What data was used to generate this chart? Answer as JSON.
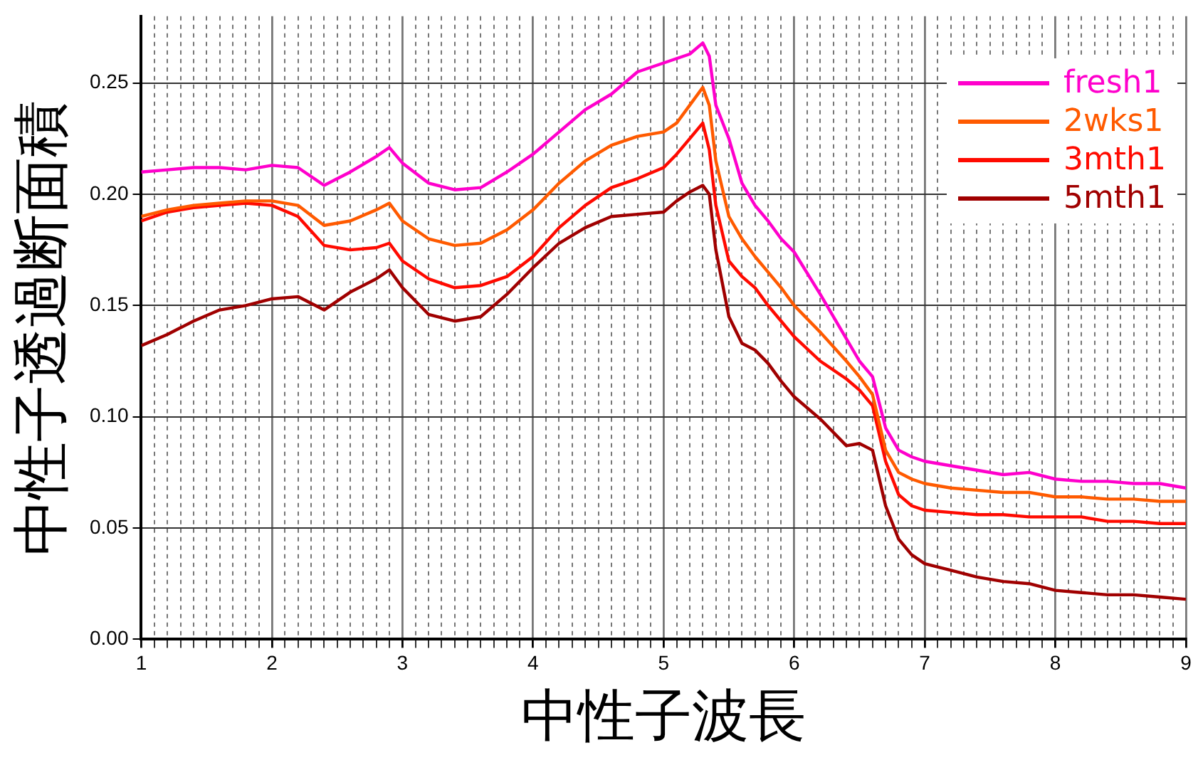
{
  "chart_data": {
    "type": "line",
    "xlabel": "中性子波長",
    "ylabel": "中性子透過断面積",
    "x": [
      1.0,
      1.2,
      1.4,
      1.6,
      1.8,
      2.0,
      2.2,
      2.4,
      2.6,
      2.8,
      2.9,
      3.0,
      3.2,
      3.4,
      3.6,
      3.8,
      4.0,
      4.2,
      4.4,
      4.6,
      4.8,
      5.0,
      5.1,
      5.2,
      5.3,
      5.35,
      5.4,
      5.5,
      5.6,
      5.7,
      5.8,
      5.9,
      6.0,
      6.2,
      6.4,
      6.5,
      6.6,
      6.7,
      6.8,
      6.9,
      7.0,
      7.2,
      7.4,
      7.6,
      7.8,
      8.0,
      8.2,
      8.4,
      8.6,
      8.8,
      9.0
    ],
    "series": [
      {
        "name": "fresh1",
        "color": "#ff00cc",
        "values": [
          0.21,
          0.211,
          0.212,
          0.212,
          0.211,
          0.213,
          0.212,
          0.204,
          0.21,
          0.217,
          0.221,
          0.214,
          0.205,
          0.202,
          0.203,
          0.21,
          0.218,
          0.228,
          0.238,
          0.245,
          0.255,
          0.259,
          0.261,
          0.263,
          0.268,
          0.262,
          0.24,
          0.225,
          0.205,
          0.195,
          0.188,
          0.18,
          0.174,
          0.155,
          0.135,
          0.125,
          0.118,
          0.095,
          0.085,
          0.082,
          0.08,
          0.078,
          0.076,
          0.074,
          0.075,
          0.072,
          0.071,
          0.071,
          0.07,
          0.07,
          0.068
        ]
      },
      {
        "name": "2wks1",
        "color": "#ff5a00",
        "values": [
          0.19,
          0.193,
          0.195,
          0.196,
          0.197,
          0.197,
          0.195,
          0.186,
          0.188,
          0.193,
          0.196,
          0.188,
          0.18,
          0.177,
          0.178,
          0.184,
          0.193,
          0.205,
          0.215,
          0.222,
          0.226,
          0.228,
          0.232,
          0.24,
          0.248,
          0.24,
          0.215,
          0.19,
          0.18,
          0.172,
          0.165,
          0.158,
          0.15,
          0.138,
          0.125,
          0.118,
          0.11,
          0.085,
          0.075,
          0.072,
          0.07,
          0.068,
          0.067,
          0.066,
          0.066,
          0.064,
          0.064,
          0.063,
          0.063,
          0.062,
          0.062
        ]
      },
      {
        "name": "3mth1",
        "color": "#ff0a00",
        "values": [
          0.188,
          0.192,
          0.194,
          0.195,
          0.196,
          0.195,
          0.19,
          0.177,
          0.175,
          0.176,
          0.178,
          0.17,
          0.162,
          0.158,
          0.159,
          0.163,
          0.172,
          0.185,
          0.195,
          0.203,
          0.207,
          0.212,
          0.218,
          0.225,
          0.232,
          0.22,
          0.195,
          0.17,
          0.163,
          0.158,
          0.15,
          0.143,
          0.136,
          0.125,
          0.117,
          0.112,
          0.105,
          0.08,
          0.065,
          0.06,
          0.058,
          0.057,
          0.056,
          0.056,
          0.055,
          0.055,
          0.055,
          0.053,
          0.053,
          0.052,
          0.052
        ]
      },
      {
        "name": "5mth1",
        "color": "#a00000",
        "values": [
          0.132,
          0.137,
          0.143,
          0.148,
          0.15,
          0.153,
          0.154,
          0.148,
          0.156,
          0.162,
          0.166,
          0.158,
          0.146,
          0.143,
          0.145,
          0.155,
          0.167,
          0.178,
          0.185,
          0.19,
          0.191,
          0.192,
          0.197,
          0.201,
          0.204,
          0.2,
          0.175,
          0.145,
          0.133,
          0.13,
          0.124,
          0.116,
          0.109,
          0.099,
          0.087,
          0.088,
          0.085,
          0.06,
          0.045,
          0.038,
          0.034,
          0.031,
          0.028,
          0.026,
          0.025,
          0.022,
          0.021,
          0.02,
          0.02,
          0.019,
          0.018
        ]
      }
    ],
    "xlim": [
      1,
      9
    ],
    "xticks": [
      1,
      {
        "value": 1.1,
        "label": null
      },
      {
        "value": 1.2,
        "label": null
      },
      {
        "value": 1.3,
        "label": null
      },
      {
        "value": 1.4,
        "label": null
      },
      {
        "value": 1.5,
        "label": null
      },
      {
        "value": 1.6,
        "label": null
      },
      {
        "value": 1.7,
        "label": null
      },
      {
        "value": 1.8,
        "label": null
      },
      {
        "value": 1.9,
        "label": null
      },
      2,
      {
        "value": 2.1,
        "label": null
      },
      {
        "value": 2.2,
        "label": null
      },
      {
        "value": 2.3,
        "label": null
      },
      {
        "value": 2.4,
        "label": null
      },
      {
        "value": 2.5,
        "label": null
      },
      {
        "value": 2.6,
        "label": null
      },
      {
        "value": 2.7,
        "label": null
      },
      {
        "value": 2.8,
        "label": null
      },
      {
        "value": 2.9,
        "label": null
      },
      3,
      {
        "value": 3.1,
        "label": null
      },
      {
        "value": 3.2,
        "label": null
      },
      {
        "value": 3.3,
        "label": null
      },
      {
        "value": 3.4,
        "label": null
      },
      {
        "value": 3.5,
        "label": null
      },
      {
        "value": 3.6,
        "label": null
      },
      {
        "value": 3.7,
        "label": null
      },
      {
        "value": 3.8,
        "label": null
      },
      {
        "value": 3.9,
        "label": null
      },
      4,
      {
        "value": 4.1,
        "label": null
      },
      {
        "value": 4.2,
        "label": null
      },
      {
        "value": 4.3,
        "label": null
      },
      {
        "value": 4.4,
        "label": null
      },
      {
        "value": 4.5,
        "label": null
      },
      {
        "value": 4.6,
        "label": null
      },
      {
        "value": 4.7,
        "label": null
      },
      {
        "value": 4.8,
        "label": null
      },
      {
        "value": 4.9,
        "label": null
      },
      5,
      {
        "value": 5.1,
        "label": null
      },
      {
        "value": 5.2,
        "label": null
      },
      {
        "value": 5.3,
        "label": null
      },
      {
        "value": 5.4,
        "label": null
      },
      {
        "value": 5.5,
        "label": null
      },
      {
        "value": 5.6,
        "label": null
      },
      {
        "value": 5.7,
        "label": null
      },
      {
        "value": 5.8,
        "label": null
      },
      {
        "value": 5.9,
        "label": null
      },
      6,
      {
        "value": 6.1,
        "label": null
      },
      {
        "value": 6.2,
        "label": null
      },
      {
        "value": 6.3,
        "label": null
      },
      {
        "value": 6.4,
        "label": null
      },
      {
        "value": 6.5,
        "label": null
      },
      {
        "value": 6.6,
        "label": null
      },
      {
        "value": 6.7,
        "label": null
      },
      {
        "value": 6.8,
        "label": null
      },
      {
        "value": 6.9,
        "label": null
      },
      7,
      {
        "value": 7.1,
        "label": null
      },
      {
        "value": 7.2,
        "label": null
      },
      {
        "value": 7.3,
        "label": null
      },
      {
        "value": 7.4,
        "label": null
      },
      {
        "value": 7.5,
        "label": null
      },
      {
        "value": 7.6,
        "label": null
      },
      {
        "value": 7.7,
        "label": null
      },
      {
        "value": 7.8,
        "label": null
      },
      {
        "value": 7.9,
        "label": null
      },
      8,
      {
        "value": 8.1,
        "label": null
      },
      {
        "value": 8.2,
        "label": null
      },
      {
        "value": 8.3,
        "label": null
      },
      {
        "value": 8.4,
        "label": null
      },
      {
        "value": 8.5,
        "label": null
      },
      {
        "value": 8.6,
        "label": null
      },
      {
        "value": 8.7,
        "label": null
      },
      {
        "value": 8.8,
        "label": null
      },
      {
        "value": 8.9,
        "label": null
      },
      9
    ],
    "ylim": [
      0,
      0.28
    ],
    "yticks": [
      {
        "value": 0,
        "label": "0.00"
      },
      {
        "value": 0.05,
        "label": "0.05"
      },
      {
        "value": 0.1,
        "label": "0.10"
      },
      {
        "value": 0.15,
        "label": "0.15"
      },
      {
        "value": 0.2,
        "label": "0.20"
      },
      {
        "value": 0.25,
        "label": "0.25"
      }
    ],
    "grid": true,
    "legend": "top right",
    "marker": "none",
    "line_style": "solid"
  }
}
